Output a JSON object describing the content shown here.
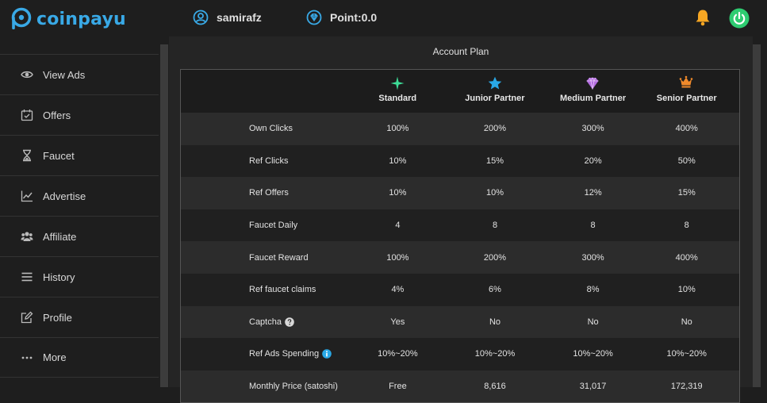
{
  "app": {
    "brand": "coinpayu",
    "accent_color": "#39a9e6",
    "username": "samirafz",
    "points_label": "Point:0.0",
    "bell_color": "#f5a623",
    "power_color": "#2ecc71"
  },
  "sidebar": {
    "items": [
      {
        "label": "View Ads",
        "icon": "eye-icon"
      },
      {
        "label": "Offers",
        "icon": "calendar-check-icon"
      },
      {
        "label": "Faucet",
        "icon": "hourglass-icon"
      },
      {
        "label": "Advertise",
        "icon": "line-chart-icon"
      },
      {
        "label": "Affiliate",
        "icon": "users-icon"
      },
      {
        "label": "History",
        "icon": "list-icon"
      },
      {
        "label": "Profile",
        "icon": "edit-icon"
      },
      {
        "label": "More",
        "icon": "ellipsis-icon"
      }
    ]
  },
  "main": {
    "title": "Account Plan",
    "plans": [
      {
        "name": "Standard",
        "icon": "sparkle-icon",
        "color": "#3ddc97"
      },
      {
        "name": "Junior Partner",
        "icon": "star-icon",
        "color": "#29a8e6"
      },
      {
        "name": "Medium Partner",
        "icon": "diamond-icon",
        "color": "#b36be0"
      },
      {
        "name": "Senior Partner",
        "icon": "crown-icon",
        "color": "#f08a2b"
      }
    ],
    "rows": [
      {
        "label": "Own Clicks",
        "values": [
          "100%",
          "200%",
          "300%",
          "400%"
        ]
      },
      {
        "label": "Ref Clicks",
        "values": [
          "10%",
          "15%",
          "20%",
          "50%"
        ]
      },
      {
        "label": "Ref Offers",
        "values": [
          "10%",
          "10%",
          "12%",
          "15%"
        ]
      },
      {
        "label": "Faucet Daily",
        "values": [
          "4",
          "8",
          "8",
          "8"
        ]
      },
      {
        "label": "Faucet Reward",
        "values": [
          "100%",
          "200%",
          "300%",
          "400%"
        ]
      },
      {
        "label": "Ref faucet claims",
        "values": [
          "4%",
          "6%",
          "8%",
          "10%"
        ]
      },
      {
        "label": "Captcha",
        "values": [
          "Yes",
          "No",
          "No",
          "No"
        ]
      },
      {
        "label": "Ref Ads Spending",
        "values": [
          "10%~20%",
          "10%~20%",
          "10%~20%",
          "10%~20%"
        ]
      },
      {
        "label": "Monthly Price (satoshi)",
        "values": [
          "Free",
          "8,616",
          "31,017",
          "172,319"
        ]
      }
    ]
  }
}
